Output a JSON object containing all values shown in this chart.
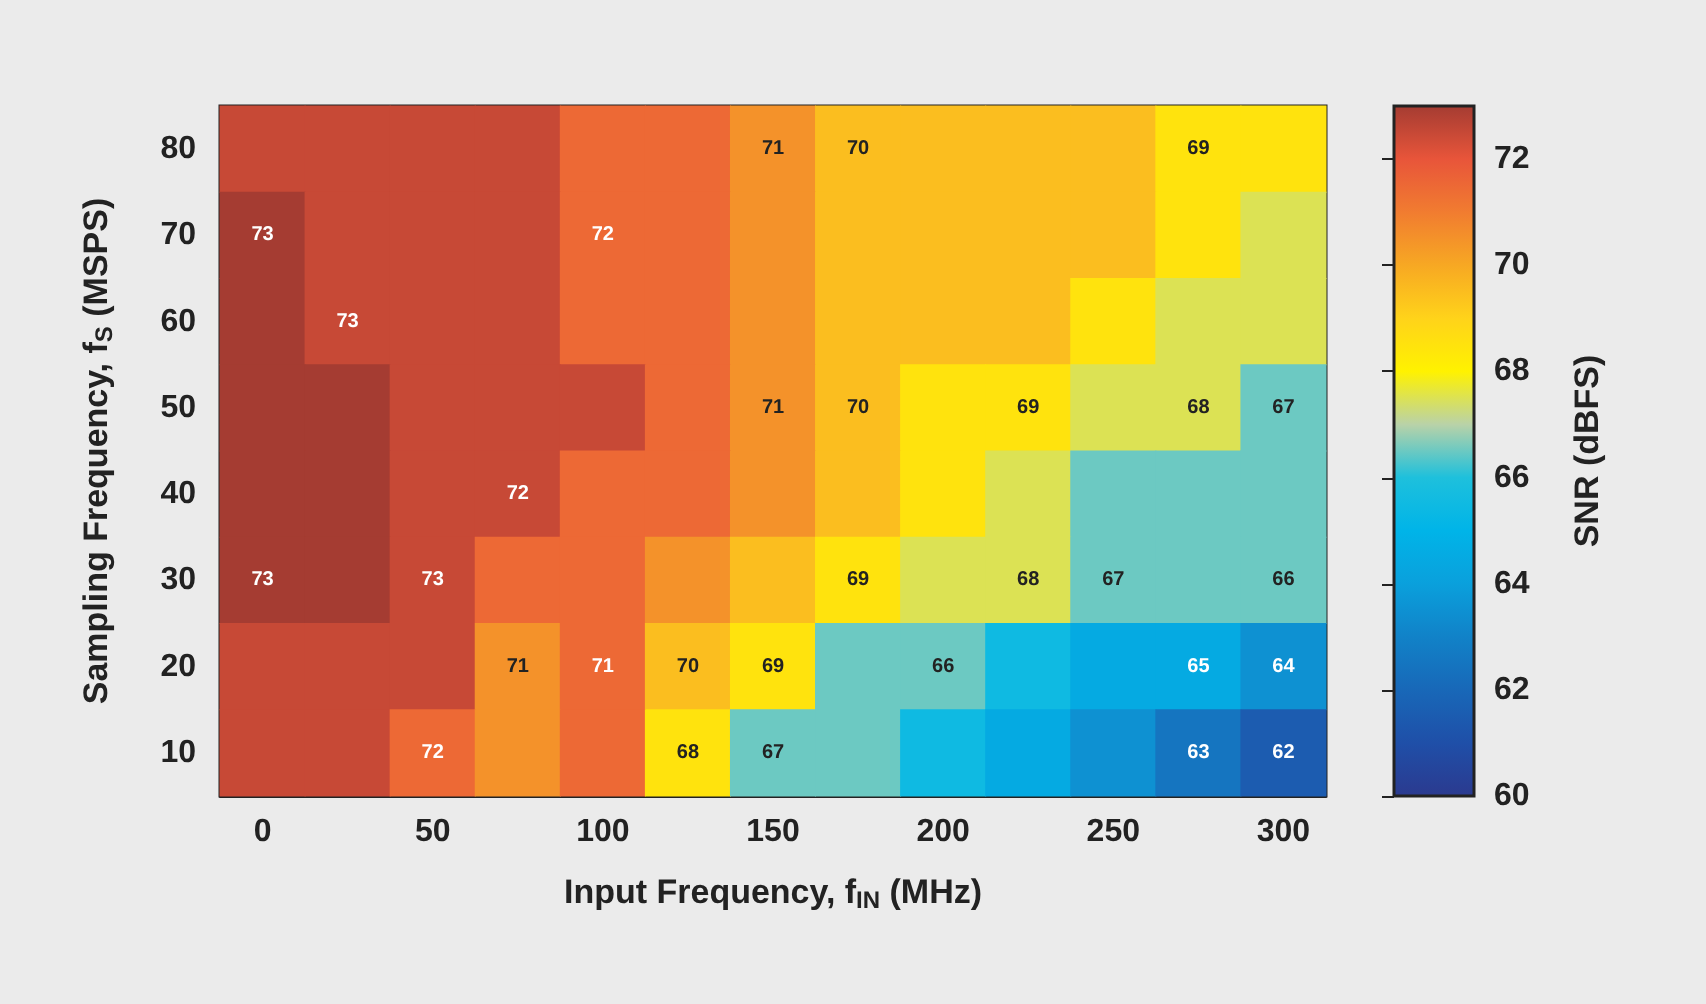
{
  "chart_data": {
    "type": "heatmap",
    "xlabel": "Input Frequency, f$_{IN}$ (MHz)",
    "ylabel": "Sampling Frequency, f$_{S}$ (MSPS)",
    "clabel": "SNR (dBFS)",
    "categories": [
      "0",
      null,
      "50",
      null,
      "100",
      null,
      "150",
      null,
      "200",
      null,
      "250",
      null,
      "300"
    ],
    "y_categories": [
      "80",
      "70",
      "60",
      "50",
      "40",
      "30",
      "20",
      "10"
    ],
    "cells": [
      [
        72.5,
        72.5,
        72.5,
        72.5,
        71.5,
        71.5,
        70.5,
        69.5,
        69.5,
        69.5,
        69.5,
        68.5,
        68.5
      ],
      [
        73,
        72.5,
        72.5,
        72.5,
        71.5,
        71.5,
        70.5,
        69.5,
        69.5,
        69.5,
        69.5,
        68.5,
        67.5
      ],
      [
        73,
        72.5,
        72.5,
        72.5,
        71.5,
        71.5,
        70.5,
        69.5,
        69.5,
        69.5,
        68.5,
        67.5,
        67.5
      ],
      [
        73,
        73,
        72.5,
        72.5,
        72.5,
        71.5,
        70.5,
        69.5,
        68.5,
        68.5,
        67.5,
        67.5,
        66.5
      ],
      [
        73,
        73,
        72.5,
        72.5,
        71.5,
        71.5,
        70.5,
        69.5,
        68.5,
        67.5,
        66.5,
        66.5,
        66.5
      ],
      [
        73,
        73,
        72.5,
        71.5,
        71.5,
        70.5,
        69.5,
        68.5,
        67.5,
        67.5,
        66.5,
        66.5,
        66.5
      ],
      [
        72.5,
        72.5,
        72.5,
        70.5,
        71.5,
        69.5,
        68.5,
        66.5,
        66.5,
        65.5,
        64.5,
        64.5,
        63.5
      ],
      [
        72.5,
        72.5,
        71.5,
        70.5,
        71.5,
        68.5,
        66.5,
        66.5,
        65.5,
        64.5,
        63.5,
        62.5,
        61.5
      ]
    ],
    "cell_labels": [
      [
        null,
        null,
        null,
        null,
        null,
        null,
        "71",
        "70",
        null,
        null,
        null,
        "69",
        null
      ],
      [
        "73",
        null,
        null,
        null,
        "72",
        null,
        null,
        null,
        null,
        null,
        null,
        null,
        null
      ],
      [
        null,
        "73",
        null,
        null,
        null,
        null,
        null,
        null,
        null,
        null,
        null,
        null,
        null
      ],
      [
        null,
        null,
        null,
        null,
        null,
        null,
        "71",
        "70",
        null,
        "69",
        null,
        "68",
        "67"
      ],
      [
        null,
        null,
        null,
        "72",
        null,
        null,
        null,
        null,
        null,
        null,
        null,
        null,
        null
      ],
      [
        "73",
        null,
        "73",
        null,
        null,
        null,
        null,
        "69",
        null,
        "68",
        "67",
        null,
        "66"
      ],
      [
        null,
        null,
        null,
        "71",
        "71",
        "70",
        "69",
        null,
        "66",
        null,
        null,
        "65",
        "64"
      ],
      [
        null,
        null,
        "72",
        null,
        null,
        "68",
        "67",
        null,
        null,
        null,
        null,
        "63",
        "62"
      ]
    ],
    "clim": [
      60,
      73
    ],
    "cticks": [
      60,
      62,
      64,
      66,
      68,
      70,
      72
    ]
  }
}
